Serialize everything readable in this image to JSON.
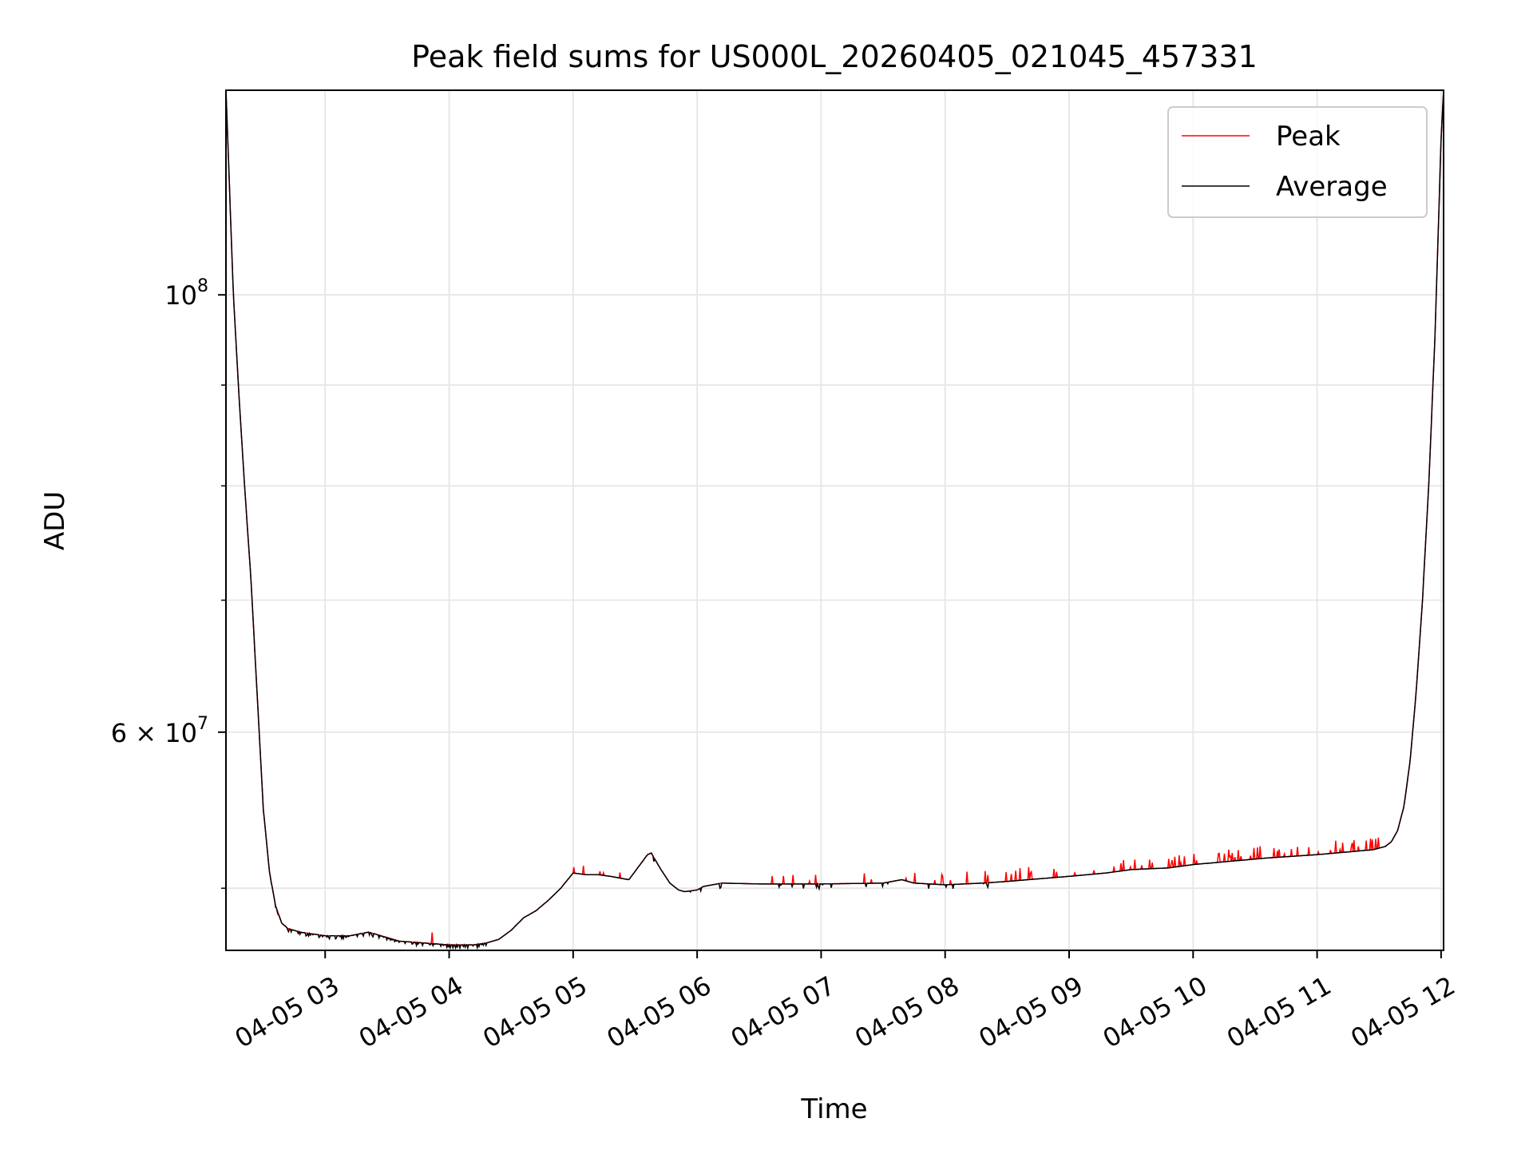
{
  "chart_data": {
    "type": "line",
    "title": "Peak field sums for US000L_20260405_021045_457331",
    "xlabel": "Time",
    "ylabel": "ADU",
    "y_scale": "log",
    "xlim_hours": [
      2.2,
      12.02
    ],
    "ylim": [
      46500000,
      127000000
    ],
    "grid": true,
    "legend_position": "upper right",
    "x_tick_labels": [
      {
        "hour": 3,
        "label": "04-05 03"
      },
      {
        "hour": 4,
        "label": "04-05 04"
      },
      {
        "hour": 5,
        "label": "04-05 05"
      },
      {
        "hour": 6,
        "label": "04-05 06"
      },
      {
        "hour": 7,
        "label": "04-05 07"
      },
      {
        "hour": 8,
        "label": "04-05 08"
      },
      {
        "hour": 9,
        "label": "04-05 09"
      },
      {
        "hour": 10,
        "label": "04-05 10"
      },
      {
        "hour": 11,
        "label": "04-05 11"
      },
      {
        "hour": 12,
        "label": "04-05 12"
      }
    ],
    "y_major_ticks": [
      {
        "value": 100000000,
        "base": "10",
        "exp": "8",
        "mantissa": ""
      },
      {
        "value": 60000000,
        "base": "10",
        "exp": "7",
        "mantissa": "6"
      }
    ],
    "y_minor_ticks": [
      50000000,
      70000000,
      80000000,
      90000000
    ],
    "series": [
      {
        "name": "Peak",
        "color": "#ff0000",
        "note": "Peak tracks the Average curve closely, with frequent short upward spikes from ~04-05 06 onward, increasing in density toward 04-05 11.6."
      },
      {
        "name": "Average",
        "color": "#000000",
        "x_hours": [
          2.2,
          2.26,
          2.3,
          2.35,
          2.4,
          2.45,
          2.5,
          2.55,
          2.6,
          2.65,
          2.7,
          2.8,
          2.9,
          3.0,
          3.2,
          3.35,
          3.4,
          3.5,
          3.6,
          3.8,
          4.0,
          4.2,
          4.3,
          4.4,
          4.5,
          4.6,
          4.7,
          4.8,
          4.9,
          5.0,
          5.1,
          5.2,
          5.3,
          5.45,
          5.5,
          5.6,
          5.63,
          5.7,
          5.78,
          5.85,
          5.9,
          6.0,
          6.05,
          6.2,
          6.5,
          7.0,
          7.5,
          7.65,
          7.75,
          8.0,
          8.3,
          8.5,
          9.0,
          9.3,
          9.5,
          9.8,
          10.0,
          10.3,
          10.6,
          11.0,
          11.3,
          11.45,
          11.55,
          11.6,
          11.65,
          11.7,
          11.75,
          11.8,
          11.85,
          11.9,
          11.95,
          12.0,
          12.02
        ],
        "values": [
          127000000,
          100000000,
          90000000,
          80000000,
          72000000,
          63000000,
          55000000,
          51000000,
          49000000,
          48000000,
          47700000,
          47500000,
          47400000,
          47300000,
          47300000,
          47500000,
          47400000,
          47200000,
          47000000,
          46900000,
          46800000,
          46800000,
          46900000,
          47100000,
          47600000,
          48300000,
          48700000,
          49300000,
          50000000,
          50900000,
          50800000,
          50800000,
          50700000,
          50500000,
          51000000,
          52000000,
          52100000,
          51200000,
          50300000,
          49900000,
          49800000,
          49900000,
          50100000,
          50300000,
          50250000,
          50250000,
          50300000,
          50500000,
          50300000,
          50200000,
          50300000,
          50400000,
          50700000,
          50900000,
          51100000,
          51200000,
          51400000,
          51600000,
          51800000,
          52000000,
          52200000,
          52300000,
          52500000,
          52800000,
          53500000,
          55000000,
          58000000,
          63000000,
          70000000,
          80000000,
          95000000,
          120000000,
          127000000
        ]
      }
    ]
  }
}
